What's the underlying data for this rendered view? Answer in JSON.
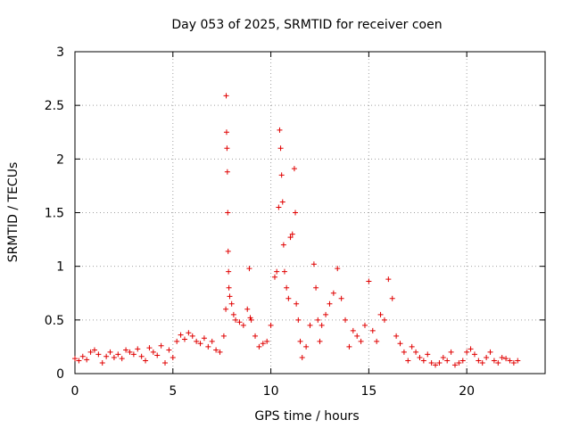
{
  "chart_data": {
    "type": "scatter",
    "title": "Day 053 of 2025, SRMTID for receiver coen",
    "xlabel": "GPS time / hours",
    "ylabel": "SRMTID / TECUs",
    "xlim": [
      0,
      24
    ],
    "ylim": [
      0,
      3
    ],
    "xticks": [
      0,
      5,
      10,
      15,
      20
    ],
    "xtick_labels": [
      "0",
      "5",
      "10",
      "15",
      "20"
    ],
    "yticks": [
      0,
      0.5,
      1,
      1.5,
      2,
      2.5,
      3
    ],
    "ytick_labels": [
      "0",
      "0.5",
      "1",
      "1.5",
      "2",
      "2.5",
      "3"
    ],
    "grid": true,
    "marker": "+",
    "color": "#e00000",
    "series": [
      {
        "name": "SRMTID",
        "x": [
          0.0,
          0.2,
          0.4,
          0.6,
          0.8,
          1.0,
          1.2,
          1.4,
          1.6,
          1.8,
          2.0,
          2.2,
          2.4,
          2.6,
          2.8,
          3.0,
          3.2,
          3.4,
          3.6,
          3.8,
          4.0,
          4.2,
          4.4,
          4.6,
          4.8,
          5.0,
          5.2,
          5.4,
          5.6,
          5.8,
          6.0,
          6.2,
          6.4,
          6.6,
          6.8,
          7.0,
          7.2,
          7.4,
          7.6,
          7.7,
          7.72,
          7.74,
          7.76,
          7.78,
          7.8,
          7.82,
          7.84,
          7.86,
          7.9,
          8.0,
          8.1,
          8.2,
          8.4,
          8.6,
          8.8,
          8.9,
          8.95,
          9.0,
          9.2,
          9.4,
          9.6,
          9.8,
          10.0,
          10.2,
          10.3,
          10.4,
          10.45,
          10.5,
          10.55,
          10.6,
          10.65,
          10.7,
          10.8,
          10.9,
          11.0,
          11.1,
          11.2,
          11.25,
          11.3,
          11.4,
          11.5,
          11.6,
          11.8,
          12.0,
          12.2,
          12.3,
          12.4,
          12.5,
          12.6,
          12.8,
          13.0,
          13.2,
          13.4,
          13.6,
          13.8,
          14.0,
          14.2,
          14.4,
          14.6,
          14.8,
          15.0,
          15.2,
          15.4,
          15.6,
          15.8,
          16.0,
          16.2,
          16.4,
          16.6,
          16.8,
          17.0,
          17.2,
          17.4,
          17.6,
          17.8,
          18.0,
          18.2,
          18.4,
          18.6,
          18.8,
          19.0,
          19.2,
          19.4,
          19.6,
          19.8,
          20.0,
          20.2,
          20.4,
          20.6,
          20.8,
          21.0,
          21.2,
          21.4,
          21.6,
          21.8,
          22.0,
          22.2,
          22.4,
          22.6
        ],
        "y": [
          0.14,
          0.12,
          0.16,
          0.13,
          0.2,
          0.22,
          0.18,
          0.1,
          0.16,
          0.2,
          0.15,
          0.18,
          0.14,
          0.22,
          0.2,
          0.18,
          0.23,
          0.16,
          0.12,
          0.24,
          0.2,
          0.17,
          0.26,
          0.1,
          0.22,
          0.15,
          0.3,
          0.36,
          0.32,
          0.38,
          0.35,
          0.3,
          0.28,
          0.33,
          0.25,
          0.3,
          0.22,
          0.2,
          0.35,
          0.6,
          2.59,
          2.25,
          2.1,
          1.88,
          1.5,
          1.14,
          0.95,
          0.8,
          0.72,
          0.65,
          0.55,
          0.5,
          0.48,
          0.45,
          0.6,
          0.98,
          0.52,
          0.5,
          0.35,
          0.25,
          0.28,
          0.3,
          0.45,
          0.9,
          0.95,
          1.55,
          2.27,
          2.1,
          1.85,
          1.6,
          1.2,
          0.95,
          0.8,
          0.7,
          1.27,
          1.3,
          1.91,
          1.5,
          0.65,
          0.5,
          0.3,
          0.15,
          0.25,
          0.45,
          1.02,
          0.8,
          0.5,
          0.3,
          0.45,
          0.55,
          0.65,
          0.75,
          0.98,
          0.7,
          0.5,
          0.25,
          0.4,
          0.35,
          0.3,
          0.45,
          0.86,
          0.4,
          0.3,
          0.55,
          0.5,
          0.88,
          0.7,
          0.35,
          0.28,
          0.2,
          0.12,
          0.25,
          0.2,
          0.15,
          0.12,
          0.18,
          0.1,
          0.08,
          0.1,
          0.15,
          0.12,
          0.2,
          0.08,
          0.1,
          0.12,
          0.2,
          0.23,
          0.18,
          0.12,
          0.1,
          0.15,
          0.2,
          0.12,
          0.1,
          0.15,
          0.14,
          0.12,
          0.1,
          0.12
        ]
      }
    ]
  }
}
